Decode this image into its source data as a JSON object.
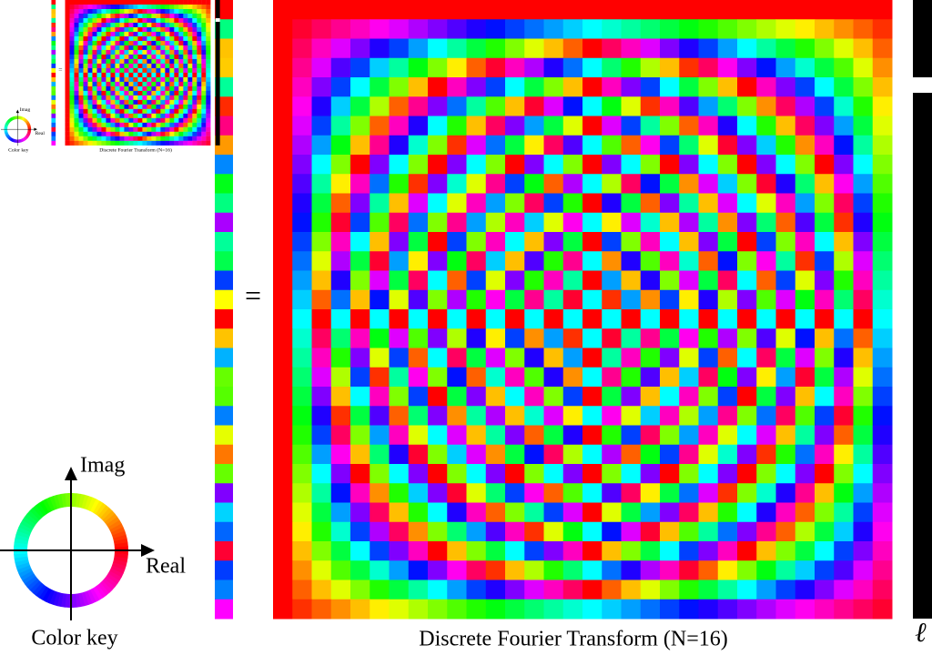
{
  "color_key": {
    "title": "Color key",
    "imag_label": "Imag",
    "real_label": "Real"
  },
  "equals": "=",
  "matrix": {
    "caption": "Discrete Fourier Transform (N=16)"
  },
  "side_label": "ℓ",
  "thumbnail": {
    "color_key_title": "Color key",
    "imag_label": "Imag",
    "real_label": "Real",
    "equals": "=",
    "caption": "Discrete Fourier Transform (N=16)"
  }
}
